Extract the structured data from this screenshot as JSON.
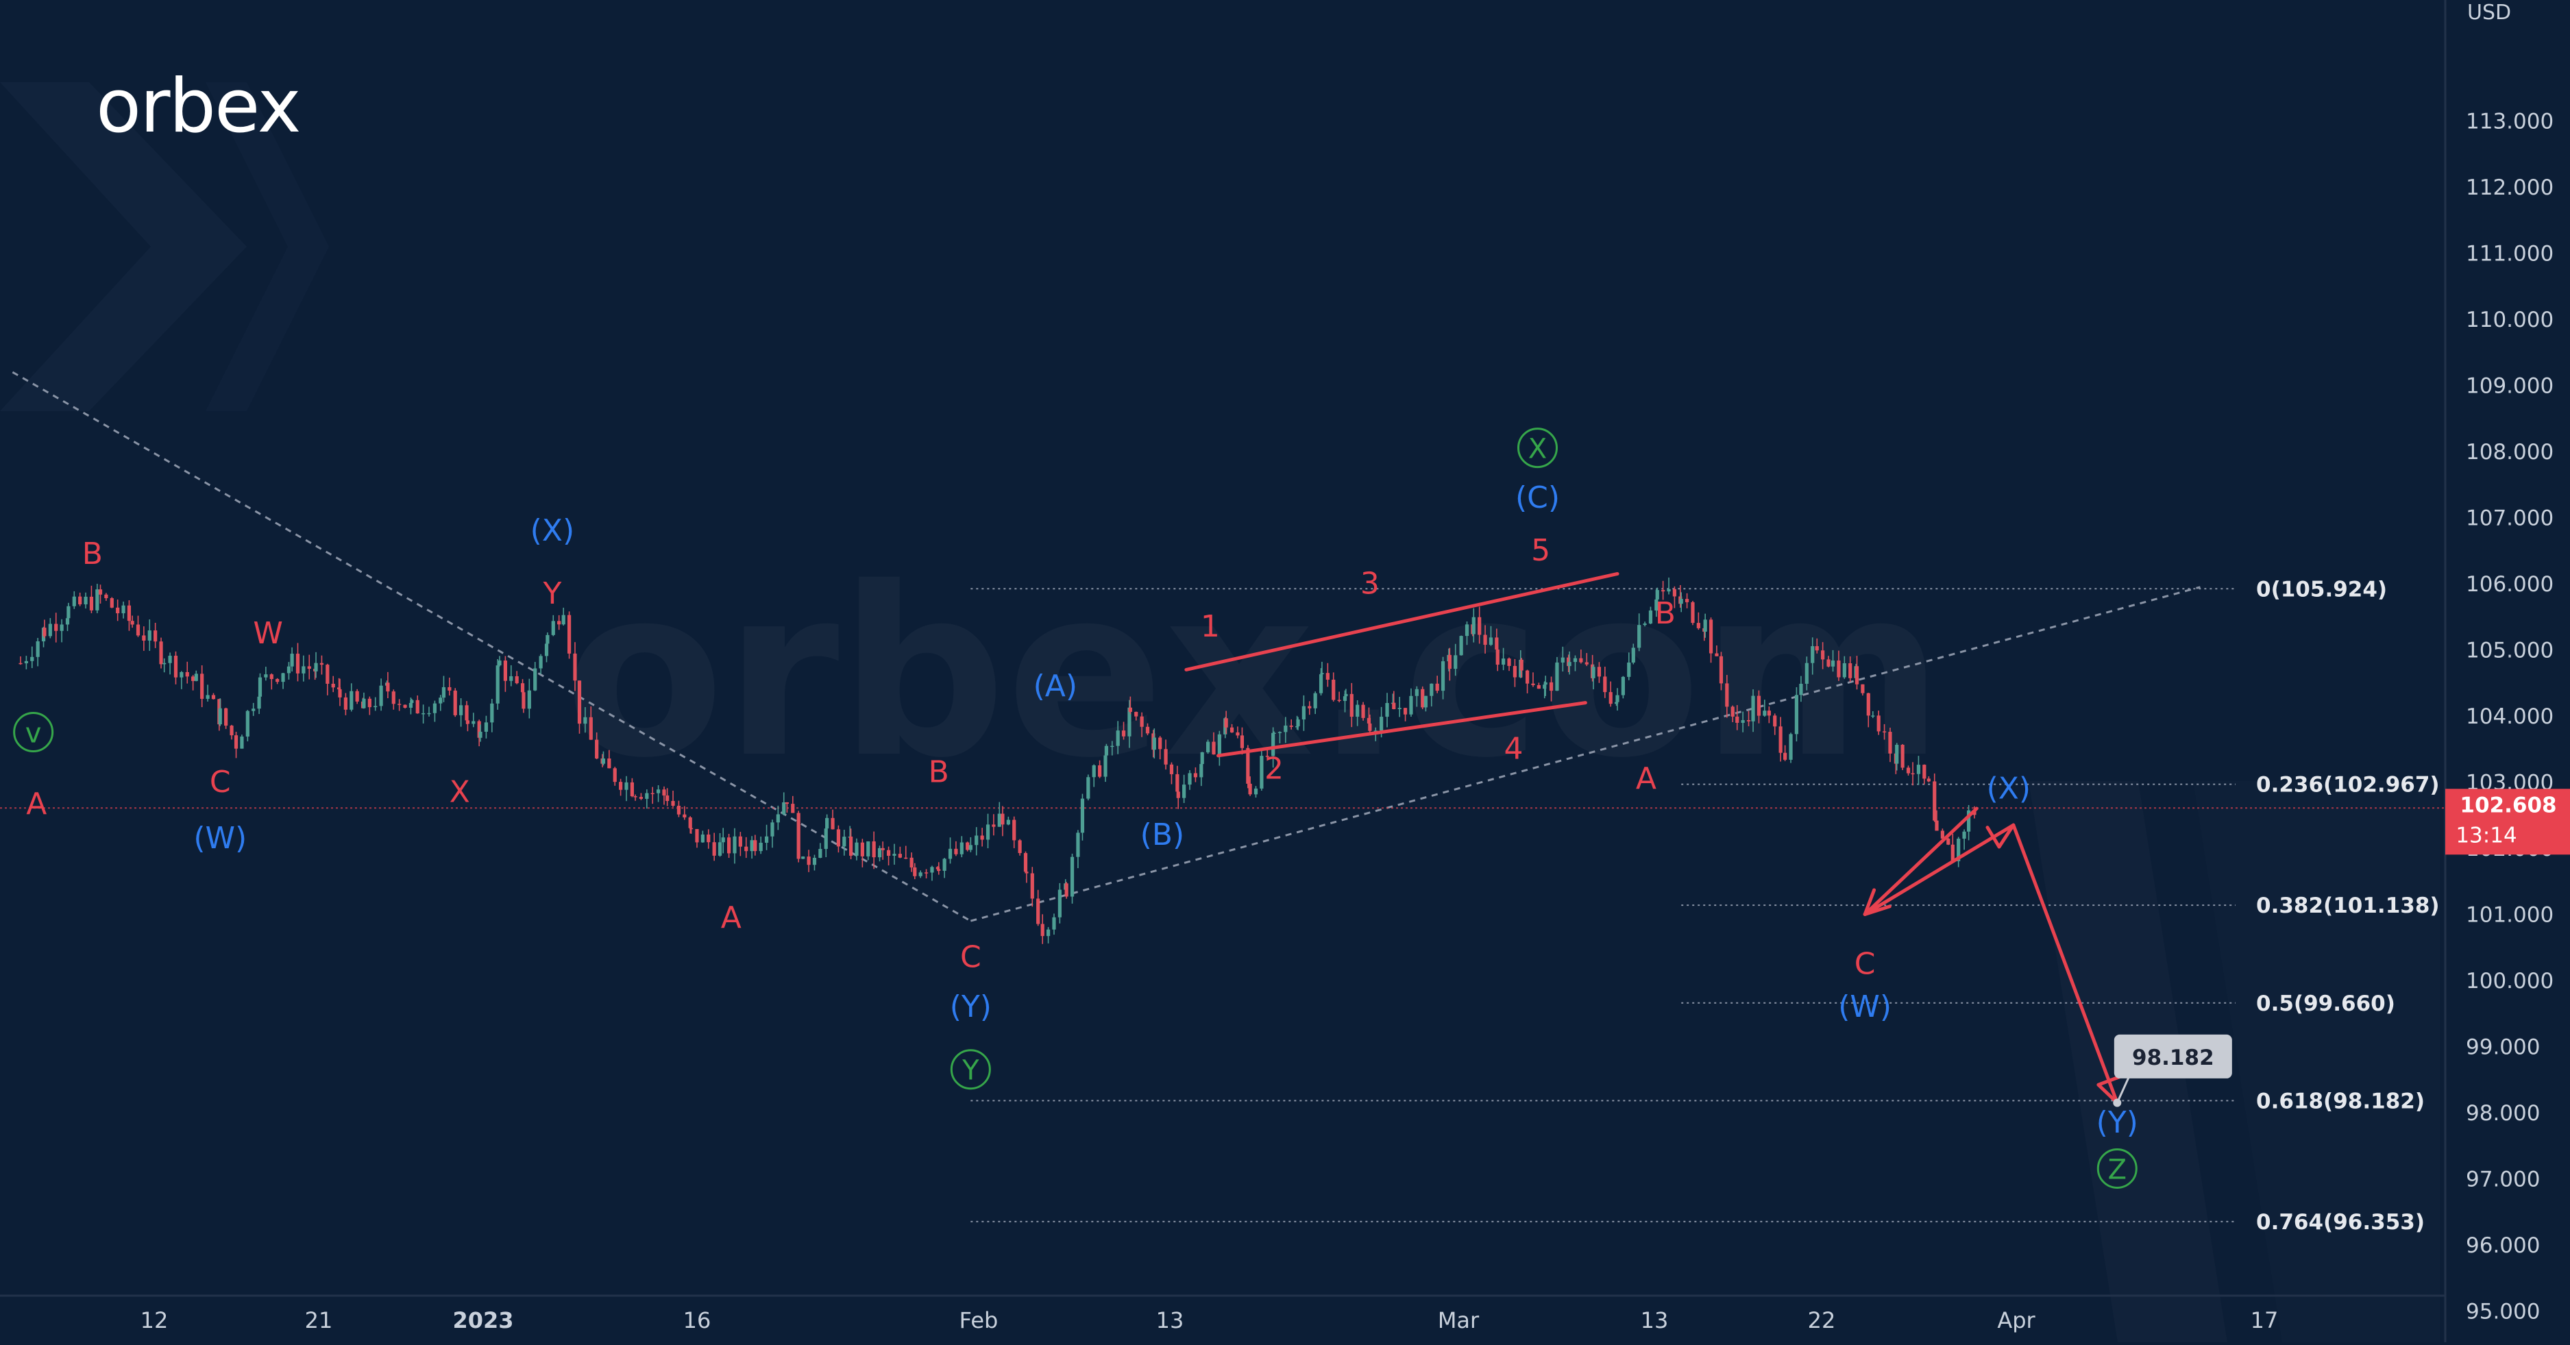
{
  "logo": {
    "text": "orbex",
    "watermark": "orbex.com"
  },
  "colors": {
    "background": "#0c1e36",
    "axis_text": "#c9d1dc",
    "red": "#e8424f",
    "blue": "#2f7cf0",
    "green": "#36a64a",
    "candle_up": "#4e9f94",
    "candle_down": "#e0505c",
    "dotted": "#8a94a6",
    "price_tag": "#e8424f",
    "target_box": "#c8ccd4"
  },
  "chart_data": {
    "type": "candlestick",
    "currency_label": "USD",
    "x_tick_labels": [
      "12",
      "21",
      "2023",
      "16",
      "Feb",
      "13",
      "Mar",
      "13",
      "22",
      "Apr",
      "17"
    ],
    "y_ticks": [
      "113.000",
      "112.000",
      "111.000",
      "110.000",
      "109.000",
      "108.000",
      "107.000",
      "106.000",
      "105.000",
      "104.000",
      "103.000",
      "102.000",
      "101.000",
      "100.000",
      "99.000",
      "98.000",
      "97.000",
      "96.000",
      "95.000"
    ],
    "ylim": [
      94.3,
      114.7
    ],
    "grid": false,
    "current_price": {
      "price": "102.608",
      "countdown": "13:14",
      "value": 102.608
    },
    "price_path": [
      [
        0,
        104.8
      ],
      [
        1.5,
        105.3
      ],
      [
        3,
        105.6
      ],
      [
        5,
        105.8
      ],
      [
        7,
        105.4
      ],
      [
        9,
        104.9
      ],
      [
        11,
        104.5
      ],
      [
        12.5,
        104.0
      ],
      [
        13.5,
        103.6
      ],
      [
        15,
        104.5
      ],
      [
        17,
        104.8
      ],
      [
        18.5,
        104.7
      ],
      [
        20,
        104.3
      ],
      [
        21.5,
        104.1
      ],
      [
        23,
        104.4
      ],
      [
        24.5,
        104.1
      ],
      [
        26.5,
        104.3
      ],
      [
        28,
        104.0
      ],
      [
        28.8,
        103.6
      ],
      [
        30,
        104.8
      ],
      [
        31.5,
        104.2
      ],
      [
        33,
        105.2
      ],
      [
        34,
        105.7
      ],
      [
        35,
        104.0
      ],
      [
        36.5,
        103.2
      ],
      [
        38.5,
        102.9
      ],
      [
        40.5,
        102.8
      ],
      [
        42,
        102.2
      ],
      [
        44,
        102.0
      ],
      [
        46,
        102.1
      ],
      [
        48,
        102.8
      ],
      [
        49,
        101.7
      ],
      [
        50.5,
        102.3
      ],
      [
        52,
        102.0
      ],
      [
        54,
        101.9
      ],
      [
        56,
        101.7
      ],
      [
        57.5,
        101.8
      ],
      [
        59.5,
        102.0
      ],
      [
        61.5,
        102.5
      ],
      [
        63,
        101.5
      ],
      [
        64,
        100.8
      ],
      [
        65.5,
        101.4
      ],
      [
        66.5,
        102.8
      ],
      [
        68,
        103.4
      ],
      [
        69.5,
        104.0
      ],
      [
        71,
        103.6
      ],
      [
        72.5,
        102.9
      ],
      [
        74,
        103.3
      ],
      [
        75.5,
        103.9
      ],
      [
        76.5,
        103.5
      ],
      [
        77,
        102.9
      ],
      [
        78.5,
        103.6
      ],
      [
        80,
        104.0
      ],
      [
        81.5,
        104.6
      ],
      [
        83,
        104.2
      ],
      [
        84.5,
        103.9
      ],
      [
        86,
        104.1
      ],
      [
        88,
        104.3
      ],
      [
        89.5,
        104.8
      ],
      [
        91,
        105.4
      ],
      [
        92.5,
        104.9
      ],
      [
        94,
        104.7
      ],
      [
        95.5,
        104.4
      ],
      [
        97,
        104.9
      ],
      [
        98.5,
        104.6
      ],
      [
        100,
        104.2
      ],
      [
        101,
        105.2
      ],
      [
        102.5,
        105.9
      ],
      [
        104,
        105.7
      ],
      [
        105.5,
        105.4
      ],
      [
        106.5,
        104.5
      ],
      [
        107.5,
        103.8
      ],
      [
        108.5,
        104.2
      ],
      [
        109.5,
        103.9
      ],
      [
        110.5,
        103.5
      ],
      [
        111.5,
        104.4
      ],
      [
        112.5,
        105.1
      ],
      [
        113.5,
        104.8
      ],
      [
        115,
        104.6
      ],
      [
        116,
        104.0
      ],
      [
        117.5,
        103.4
      ],
      [
        118.5,
        103.2
      ],
      [
        119.5,
        102.9
      ],
      [
        120,
        102.1
      ],
      [
        121,
        101.9
      ],
      [
        122,
        102.5
      ],
      [
        122.5,
        102.6
      ]
    ],
    "waves": {
      "red": [
        {
          "text": "A",
          "x": 1,
          "y": 102.52
        },
        {
          "text": "B",
          "x": 4.5,
          "y": 106.3
        },
        {
          "text": "W",
          "x": 15.5,
          "y": 105.1
        },
        {
          "text": "C",
          "x": 12.5,
          "y": 102.85
        },
        {
          "text": "X",
          "x": 27.5,
          "y": 102.7
        },
        {
          "text": "Y",
          "x": 33.3,
          "y": 105.7
        },
        {
          "text": "A",
          "x": 44.5,
          "y": 100.8
        },
        {
          "text": "B",
          "x": 57.5,
          "y": 103.0
        },
        {
          "text": "C",
          "x": 59.5,
          "y": 100.2
        },
        {
          "text": "1",
          "x": 74.5,
          "y": 105.2
        },
        {
          "text": "2",
          "x": 78.5,
          "y": 103.05
        },
        {
          "text": "3",
          "x": 84.5,
          "y": 105.85
        },
        {
          "text": "4",
          "x": 93.5,
          "y": 103.35
        },
        {
          "text": "5",
          "x": 95.2,
          "y": 106.35
        },
        {
          "text": "B",
          "x": 103,
          "y": 105.4
        },
        {
          "text": "A",
          "x": 101.8,
          "y": 102.9
        },
        {
          "text": "C",
          "x": 115.5,
          "y": 100.1
        }
      ],
      "blue": [
        {
          "text": "(W)",
          "x": 12.5,
          "y": 102.0
        },
        {
          "text": "(X)",
          "x": 33.3,
          "y": 106.65
        },
        {
          "text": "(Y)",
          "x": 59.5,
          "y": 99.45
        },
        {
          "text": "(A)",
          "x": 64.8,
          "y": 104.3
        },
        {
          "text": "(B)",
          "x": 71.5,
          "y": 102.05
        },
        {
          "text": "(C)",
          "x": 95,
          "y": 107.15
        },
        {
          "text": "(W)",
          "x": 115.5,
          "y": 99.45
        },
        {
          "text": "(X)",
          "x": 124.5,
          "y": 102.75
        },
        {
          "text": "(Y)",
          "x": 131.3,
          "y": 97.7
        }
      ],
      "green": [
        {
          "text": "v",
          "x": 0.8,
          "y": 103.6
        },
        {
          "text": "Y",
          "x": 59.5,
          "y": 98.5
        },
        {
          "text": "X",
          "x": 95,
          "y": 107.9
        },
        {
          "text": "Z",
          "x": 131.3,
          "y": 97.0
        }
      ]
    },
    "fibonacci": [
      {
        "label": "0(105.924)",
        "value": 105.924,
        "x_start": 59.5
      },
      {
        "label": "0.236(102.967)",
        "value": 102.967,
        "x_start": 104
      },
      {
        "label": "0.382(101.138)",
        "value": 101.138,
        "x_start": 104
      },
      {
        "label": "0.5(99.660)",
        "value": 99.66,
        "x_start": 104
      },
      {
        "label": "0.618(98.182)",
        "value": 98.182,
        "x_start": 59.5
      },
      {
        "label": "0.764(96.353)",
        "value": 96.353,
        "x_start": 59.5
      }
    ],
    "projection": [
      [
        122.5,
        102.6
      ],
      [
        115.5,
        101.0
      ],
      [
        124.8,
        102.35
      ],
      [
        131.3,
        98.15
      ]
    ],
    "target_label": {
      "text": "98.182",
      "x": 134.8,
      "y": 98.85
    },
    "channel_lines": [
      [
        [
          73,
          104.7
        ],
        [
          100,
          106.15
        ]
      ],
      [
        [
          75,
          103.4
        ],
        [
          98,
          104.2
        ]
      ]
    ],
    "dotted_lines": [
      [
        [
          -0.5,
          109.2
        ],
        [
          59.5,
          100.9
        ]
      ],
      [
        [
          59.5,
          100.9
        ],
        [
          136.5,
          105.95
        ]
      ]
    ]
  }
}
